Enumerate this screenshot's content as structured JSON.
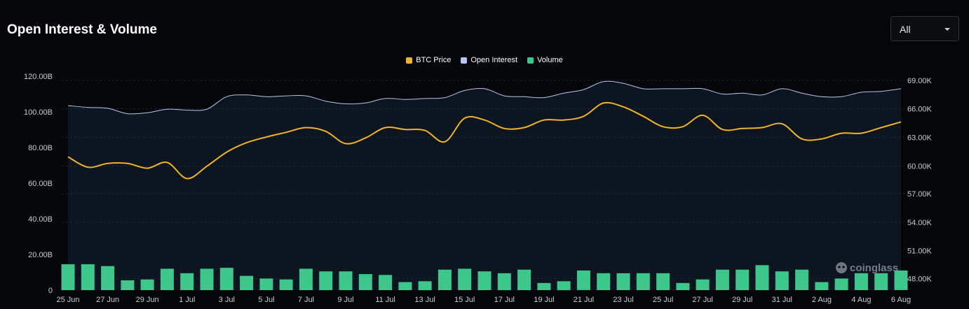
{
  "header": {
    "title": "Open Interest & Volume"
  },
  "range_select": {
    "value": "All"
  },
  "watermark": "coinglass",
  "colors": {
    "btc_price": "#f0b429",
    "open_interest": "#b4c7f2",
    "volume": "#3ec78a",
    "plot_bg": "#0d1521",
    "page_bg": "#050609"
  },
  "chart_data": {
    "type": "line",
    "title": "Open Interest & Volume",
    "legend": [
      "BTC Price",
      "Open Interest",
      "Volume"
    ],
    "legend_position": "top-center",
    "grid": true,
    "x_tick_labels": [
      "25 Jun",
      "27 Jun",
      "29 Jun",
      "1 Jul",
      "3 Jul",
      "5 Jul",
      "7 Jul",
      "9 Jul",
      "11 Jul",
      "13 Jul",
      "15 Jul",
      "17 Jul",
      "19 Jul",
      "21 Jul",
      "23 Jul",
      "25 Jul",
      "27 Jul",
      "29 Jul",
      "31 Jul",
      "2 Aug",
      "4 Aug",
      "6 Aug"
    ],
    "y_left": {
      "ticks": [
        "0",
        "20.00B",
        "40.00B",
        "60.00B",
        "80.00B",
        "100.00B",
        "120.00B"
      ],
      "range": [
        0,
        120
      ]
    },
    "y_right": {
      "ticks": [
        "48.00K",
        "51.00K",
        "54.00K",
        "57.00K",
        "60.00K",
        "63.00K",
        "66.00K",
        "69.00K"
      ],
      "range": [
        47500,
        69000
      ]
    },
    "dates": [
      "25 Jun",
      "26 Jun",
      "27 Jun",
      "28 Jun",
      "29 Jun",
      "30 Jun",
      "1 Jul",
      "2 Jul",
      "3 Jul",
      "4 Jul",
      "5 Jul",
      "6 Jul",
      "7 Jul",
      "8 Jul",
      "9 Jul",
      "10 Jul",
      "11 Jul",
      "12 Jul",
      "13 Jul",
      "14 Jul",
      "15 Jul",
      "16 Jul",
      "17 Jul",
      "18 Jul",
      "19 Jul",
      "20 Jul",
      "21 Jul",
      "22 Jul",
      "23 Jul",
      "24 Jul",
      "25 Jul",
      "26 Jul",
      "27 Jul",
      "28 Jul",
      "29 Jul",
      "30 Jul",
      "31 Jul",
      "1 Aug",
      "2 Aug",
      "3 Aug",
      "4 Aug",
      "5 Aug",
      "6 Aug"
    ],
    "series": [
      {
        "name": "Open Interest",
        "axis": "left",
        "unit": "B",
        "values": [
          103.5,
          102.5,
          102.0,
          99.0,
          99.5,
          101.5,
          101.0,
          101.5,
          108.5,
          109.5,
          108.5,
          109.0,
          109.0,
          106.0,
          104.5,
          105.0,
          107.5,
          107.0,
          107.5,
          108.0,
          112.0,
          113.0,
          109.0,
          108.5,
          108.0,
          110.5,
          112.5,
          117.0,
          116.0,
          113.0,
          113.0,
          113.0,
          113.0,
          110.0,
          110.5,
          109.5,
          113.0,
          110.5,
          108.5,
          108.5,
          111.0,
          111.5,
          113.0
        ]
      },
      {
        "name": "BTC Price",
        "axis": "right",
        "unit": "USD",
        "values": [
          60900,
          59800,
          60200,
          60200,
          59700,
          60300,
          58600,
          59900,
          61400,
          62400,
          63000,
          63500,
          64000,
          63600,
          62300,
          62900,
          64000,
          63800,
          63700,
          62500,
          65000,
          64800,
          63900,
          64000,
          64800,
          64800,
          65200,
          66600,
          66200,
          65200,
          64100,
          64100,
          65300,
          63800,
          63900,
          64000,
          64400,
          62800,
          62800,
          63400,
          63400,
          64000,
          64600
        ]
      },
      {
        "name": "Volume",
        "axis": "left",
        "unit": "B",
        "values": [
          14.5,
          14.5,
          13.5,
          5.5,
          6.0,
          12.0,
          9.5,
          12.0,
          12.5,
          8.0,
          6.5,
          6.0,
          12.0,
          10.5,
          10.5,
          9.0,
          8.5,
          4.5,
          5.0,
          11.5,
          12.0,
          10.5,
          9.5,
          11.5,
          4.0,
          5.0,
          11.0,
          9.5,
          9.5,
          9.5,
          9.5,
          4.0,
          6.0,
          11.5,
          11.5,
          14.0,
          10.5,
          11.5,
          4.5,
          6.5,
          9.5,
          9.5,
          11.0
        ]
      }
    ]
  }
}
